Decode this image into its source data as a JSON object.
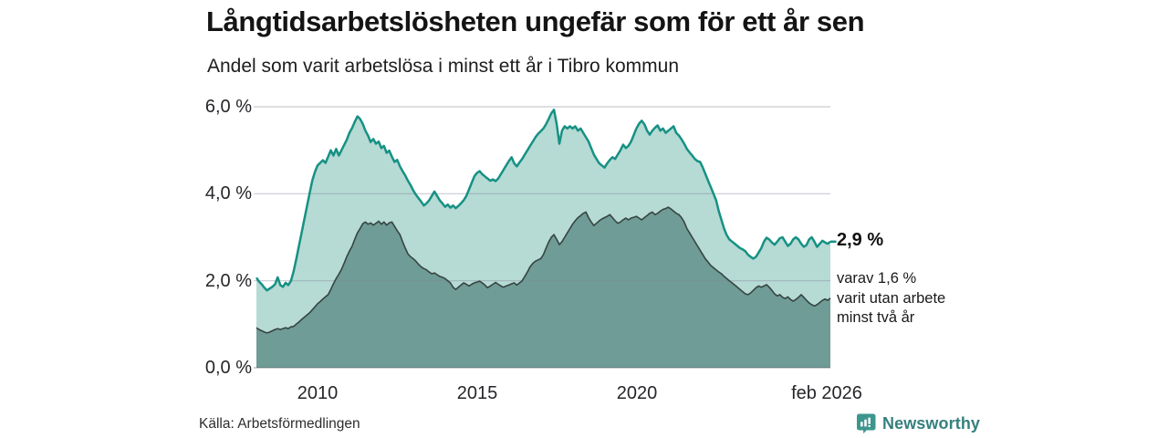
{
  "header": {
    "title": "Långtidsarbetslösheten ungefär som för ett år sen",
    "subtitle": "Andel som varit arbetslösa i minst ett år i Tibro kommun"
  },
  "chart_data": {
    "type": "area",
    "title": "Långtidsarbetslösheten ungefär som för ett år sen",
    "subtitle": "Andel som varit arbetslösa i minst ett år i Tibro kommun",
    "unit": "%",
    "frequency": "monthly",
    "x_start": "feb 2008",
    "x_end": "feb 2026",
    "ylim": [
      0,
      6.3
    ],
    "grid": true,
    "y_ticks": [
      "0,0 %",
      "2,0 %",
      "4,0 %",
      "6,0 %"
    ],
    "y_tick_values": [
      0,
      2,
      4,
      6
    ],
    "x_ticks": [
      "2010",
      "2015",
      "2020",
      "feb 2026"
    ],
    "x_tick_month_index": [
      23,
      83,
      143,
      216
    ],
    "colors": {
      "total_fill": "#b6dad4",
      "total_stroke": "#169184",
      "two_year_fill": "#6f9c96",
      "two_year_stroke": "#364542",
      "gridline": "#d9dade",
      "brand_teal": "#35807e"
    },
    "annotations": {
      "end_total": "2,9 %",
      "end_detail": "varav 1,6 %\nvarit utan arbete\nminst två år"
    },
    "series": [
      {
        "name": "Andel arbetslösa minst ett år",
        "end_value": 2.9,
        "values": [
          2.07,
          1.98,
          1.92,
          1.84,
          1.78,
          1.82,
          1.86,
          1.92,
          2.08,
          1.9,
          1.86,
          1.95,
          1.9,
          2.0,
          2.22,
          2.5,
          2.8,
          3.1,
          3.4,
          3.7,
          4.0,
          4.3,
          4.5,
          4.65,
          4.71,
          4.77,
          4.71,
          4.85,
          5.0,
          4.88,
          5.03,
          4.88,
          5.0,
          5.12,
          5.24,
          5.4,
          5.51,
          5.65,
          5.78,
          5.72,
          5.61,
          5.45,
          5.34,
          5.19,
          5.26,
          5.15,
          5.2,
          5.05,
          5.1,
          4.94,
          4.99,
          4.85,
          4.73,
          4.78,
          4.63,
          4.52,
          4.42,
          4.3,
          4.2,
          4.08,
          3.98,
          3.9,
          3.82,
          3.73,
          3.78,
          3.85,
          3.95,
          4.05,
          3.95,
          3.85,
          3.78,
          3.7,
          3.75,
          3.68,
          3.73,
          3.67,
          3.72,
          3.78,
          3.85,
          3.95,
          4.1,
          4.25,
          4.4,
          4.48,
          4.52,
          4.45,
          4.4,
          4.35,
          4.3,
          4.33,
          4.29,
          4.35,
          4.45,
          4.55,
          4.65,
          4.75,
          4.84,
          4.7,
          4.63,
          4.72,
          4.8,
          4.9,
          5.0,
          5.1,
          5.2,
          5.3,
          5.38,
          5.44,
          5.5,
          5.6,
          5.72,
          5.85,
          5.93,
          5.6,
          5.15,
          5.45,
          5.55,
          5.5,
          5.55,
          5.5,
          5.55,
          5.45,
          5.5,
          5.4,
          5.3,
          5.2,
          5.05,
          4.9,
          4.8,
          4.7,
          4.65,
          4.6,
          4.7,
          4.78,
          4.84,
          4.8,
          4.9,
          5.0,
          5.13,
          5.05,
          5.1,
          5.2,
          5.35,
          5.5,
          5.61,
          5.68,
          5.6,
          5.45,
          5.36,
          5.45,
          5.52,
          5.57,
          5.45,
          5.5,
          5.4,
          5.45,
          5.5,
          5.55,
          5.4,
          5.34,
          5.25,
          5.15,
          5.03,
          4.95,
          4.88,
          4.8,
          4.75,
          4.73,
          4.6,
          4.45,
          4.3,
          4.15,
          4.0,
          3.85,
          3.6,
          3.4,
          3.2,
          3.05,
          2.95,
          2.9,
          2.85,
          2.8,
          2.75,
          2.72,
          2.68,
          2.6,
          2.55,
          2.51,
          2.55,
          2.65,
          2.75,
          2.9,
          2.99,
          2.95,
          2.88,
          2.83,
          2.9,
          2.98,
          3.0,
          2.9,
          2.8,
          2.85,
          2.95,
          3.0,
          2.95,
          2.85,
          2.78,
          2.82,
          2.95,
          3.0,
          2.9,
          2.78,
          2.85,
          2.92,
          2.88,
          2.85,
          2.9
        ]
      },
      {
        "name": "varav arbetslösa minst två år",
        "end_value": 1.6,
        "values": [
          0.92,
          0.88,
          0.85,
          0.82,
          0.8,
          0.82,
          0.85,
          0.88,
          0.9,
          0.88,
          0.9,
          0.92,
          0.9,
          0.94,
          0.95,
          1.0,
          1.05,
          1.11,
          1.16,
          1.21,
          1.26,
          1.33,
          1.4,
          1.47,
          1.52,
          1.58,
          1.63,
          1.68,
          1.8,
          1.93,
          2.05,
          2.15,
          2.26,
          2.4,
          2.55,
          2.68,
          2.79,
          2.95,
          3.1,
          3.2,
          3.31,
          3.35,
          3.3,
          3.33,
          3.28,
          3.32,
          3.37,
          3.3,
          3.35,
          3.28,
          3.33,
          3.35,
          3.25,
          3.15,
          3.06,
          2.9,
          2.75,
          2.62,
          2.55,
          2.51,
          2.45,
          2.38,
          2.32,
          2.28,
          2.25,
          2.2,
          2.16,
          2.18,
          2.14,
          2.1,
          2.08,
          2.05,
          2.0,
          1.95,
          1.85,
          1.8,
          1.85,
          1.9,
          1.95,
          1.92,
          1.88,
          1.92,
          1.95,
          1.97,
          1.99,
          1.95,
          1.9,
          1.84,
          1.88,
          1.92,
          1.96,
          1.92,
          1.88,
          1.85,
          1.88,
          1.9,
          1.93,
          1.95,
          1.9,
          1.95,
          2.0,
          2.1,
          2.2,
          2.32,
          2.4,
          2.45,
          2.48,
          2.51,
          2.6,
          2.75,
          2.89,
          3.0,
          3.06,
          2.95,
          2.83,
          2.9,
          3.0,
          3.1,
          3.2,
          3.3,
          3.38,
          3.45,
          3.5,
          3.55,
          3.58,
          3.45,
          3.35,
          3.27,
          3.32,
          3.38,
          3.42,
          3.45,
          3.48,
          3.52,
          3.45,
          3.38,
          3.32,
          3.35,
          3.4,
          3.44,
          3.4,
          3.44,
          3.46,
          3.48,
          3.44,
          3.4,
          3.45,
          3.5,
          3.55,
          3.58,
          3.52,
          3.55,
          3.6,
          3.64,
          3.66,
          3.69,
          3.65,
          3.6,
          3.55,
          3.52,
          3.45,
          3.35,
          3.2,
          3.1,
          3.0,
          2.9,
          2.8,
          2.7,
          2.6,
          2.5,
          2.43,
          2.35,
          2.3,
          2.25,
          2.2,
          2.16,
          2.1,
          2.05,
          2.0,
          1.95,
          1.9,
          1.85,
          1.8,
          1.75,
          1.7,
          1.68,
          1.72,
          1.78,
          1.84,
          1.88,
          1.85,
          1.88,
          1.91,
          1.85,
          1.78,
          1.7,
          1.65,
          1.68,
          1.62,
          1.59,
          1.63,
          1.57,
          1.53,
          1.57,
          1.62,
          1.68,
          1.62,
          1.55,
          1.49,
          1.45,
          1.42,
          1.45,
          1.5,
          1.55,
          1.58,
          1.55,
          1.6
        ]
      }
    ]
  },
  "footer": {
    "source": "Källa: Arbetsförmedlingen",
    "brand": "Newsworthy"
  }
}
